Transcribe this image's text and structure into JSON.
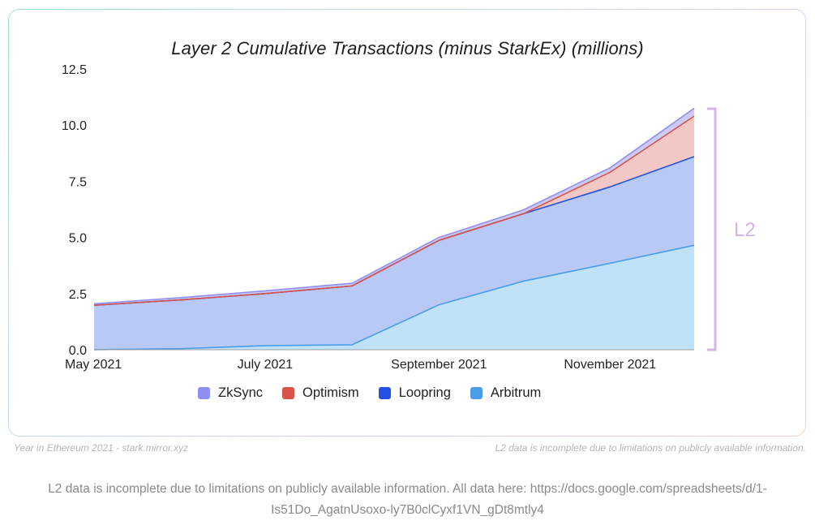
{
  "chart_data": {
    "type": "area",
    "title": "Layer 2 Cumulative Transactions (minus StarkEx) (millions)",
    "xlabel": "",
    "ylabel": "",
    "x": [
      "2021-05-01",
      "2021-06-01",
      "2021-07-01",
      "2021-08-01",
      "2021-09-01",
      "2021-10-01",
      "2021-11-01",
      "2021-12-01"
    ],
    "x_tick_labels": [
      "May 2021",
      "July 2021",
      "September 2021",
      "November 2021"
    ],
    "y_ticks": [
      "0.0",
      "2.5",
      "5.0",
      "7.5",
      "10.0",
      "12.5"
    ],
    "ylim": [
      0,
      12.5
    ],
    "stacked": true,
    "series": [
      {
        "name": "Arbitrum",
        "color": "#4a9de8",
        "fill": "#bfe2f9",
        "values": [
          0.0,
          0.05,
          0.18,
          0.22,
          2.0,
          3.05,
          3.85,
          4.65
        ]
      },
      {
        "name": "Loopring",
        "color": "#2350e6",
        "fill": "#b9c9f5",
        "values": [
          1.98,
          2.17,
          2.32,
          2.62,
          2.87,
          3.0,
          3.4,
          3.95
        ]
      },
      {
        "name": "Optimism",
        "color": "#d9534a",
        "fill": "#f1c8c5",
        "values": [
          0.0,
          0.0,
          0.0,
          0.0,
          0.0,
          0.0,
          0.65,
          1.8
        ]
      },
      {
        "name": "ZkSync",
        "color": "#8f8ff2",
        "fill": "#cdcbf6",
        "values": [
          0.07,
          0.1,
          0.12,
          0.12,
          0.13,
          0.17,
          0.2,
          0.35
        ]
      }
    ],
    "legend_order": [
      "ZkSync",
      "Optimism",
      "Loopring",
      "Arbitrum"
    ],
    "legend_position": "bottom",
    "grid": false,
    "bracket_label": "L2",
    "bracket_color": "#d4b3ec"
  },
  "footer": {
    "source": "Year in Ethereum 2021 - stark.mirror.xyz",
    "note": "L2 data is incomplete due to limitations on publicly available information."
  },
  "caption": {
    "line1": "L2 data is incomplete due to limitations on publicly available information. All data here: https://docs.google.com/spreadsheets/d/1-",
    "line2": "Is51Do_AgatnUsoxo-ly7B0clCyxf1VN_gDt8mtly4"
  }
}
